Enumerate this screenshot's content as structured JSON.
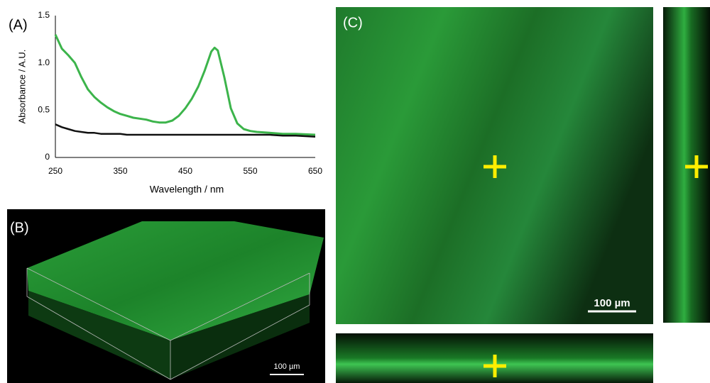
{
  "chart_data": {
    "type": "line",
    "panel_label": "(A)",
    "xlabel": "Wavelength / nm",
    "ylabel": "Absorbance / A.U.",
    "x": [
      250,
      260,
      270,
      280,
      290,
      300,
      310,
      320,
      330,
      340,
      350,
      360,
      370,
      380,
      390,
      400,
      410,
      420,
      430,
      440,
      450,
      460,
      470,
      480,
      490,
      495,
      500,
      510,
      520,
      530,
      540,
      550,
      560,
      580,
      600,
      620,
      650
    ],
    "series": [
      {
        "color": "#3cb44b",
        "values": [
          1.3,
          1.15,
          1.08,
          1.0,
          0.85,
          0.72,
          0.64,
          0.58,
          0.53,
          0.49,
          0.46,
          0.44,
          0.42,
          0.41,
          0.4,
          0.38,
          0.37,
          0.37,
          0.39,
          0.44,
          0.52,
          0.62,
          0.75,
          0.92,
          1.12,
          1.16,
          1.13,
          0.85,
          0.52,
          0.36,
          0.3,
          0.28,
          0.27,
          0.26,
          0.25,
          0.25,
          0.24
        ]
      },
      {
        "color": "#111111",
        "values": [
          0.35,
          0.32,
          0.3,
          0.28,
          0.27,
          0.26,
          0.26,
          0.25,
          0.25,
          0.25,
          0.25,
          0.24,
          0.24,
          0.24,
          0.24,
          0.24,
          0.24,
          0.24,
          0.24,
          0.24,
          0.24,
          0.24,
          0.24,
          0.24,
          0.24,
          0.24,
          0.24,
          0.24,
          0.24,
          0.24,
          0.24,
          0.24,
          0.24,
          0.24,
          0.23,
          0.23,
          0.22
        ]
      }
    ],
    "xlim": [
      250,
      650
    ],
    "xticks": [
      250,
      350,
      450,
      550,
      650
    ],
    "ylim": [
      0,
      1.5
    ],
    "yticks": [
      0,
      0.5,
      {
        "value": 1,
        "label": "1.0"
      },
      1.5
    ],
    "grid": false
  },
  "panels": {
    "b": {
      "label": "(B)",
      "scale_bar": "100 µm"
    },
    "c": {
      "label": "(C)",
      "scale_bar": "100 µm"
    }
  }
}
